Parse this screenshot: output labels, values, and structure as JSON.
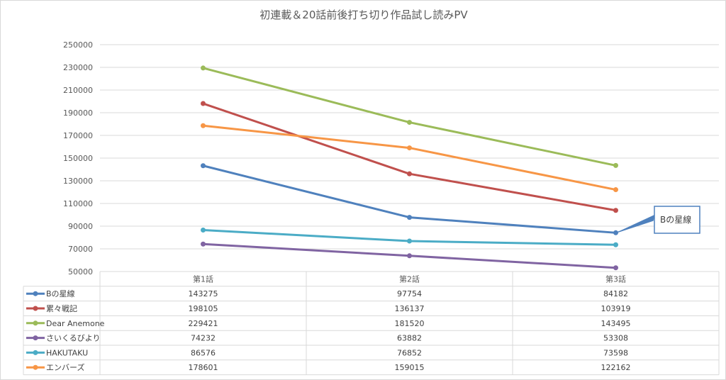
{
  "chart_data": {
    "type": "line",
    "title": "初連載＆20話前後打ち切り作品試し読みPV",
    "categories": [
      "第1話",
      "第2話",
      "第3話"
    ],
    "ylim": [
      50000,
      250000
    ],
    "yticks": [
      "250000",
      "230000",
      "210000",
      "190000",
      "170000",
      "150000",
      "130000",
      "110000",
      "90000",
      "70000",
      "50000"
    ],
    "grid": true,
    "series": [
      {
        "name": "Bの星線",
        "color": "#4f81bd",
        "values": [
          143275,
          97754,
          84182
        ]
      },
      {
        "name": "累々戦記",
        "color": "#c0504d",
        "values": [
          198105,
          136137,
          103919
        ]
      },
      {
        "name": "Dear Anemone",
        "color": "#9bbb59",
        "values": [
          229421,
          181520,
          143495
        ]
      },
      {
        "name": "さいくるびより",
        "color": "#8064a2",
        "values": [
          74232,
          63882,
          53308
        ]
      },
      {
        "name": "HAKUTAKU",
        "color": "#4bacc6",
        "values": [
          86576,
          76852,
          73598
        ]
      },
      {
        "name": "エンバーズ",
        "color": "#f79646",
        "values": [
          178601,
          159015,
          122162
        ]
      }
    ],
    "data_table": true,
    "annotation": {
      "text": "Bの星線",
      "series": "Bの星線",
      "point": "第3話"
    }
  }
}
